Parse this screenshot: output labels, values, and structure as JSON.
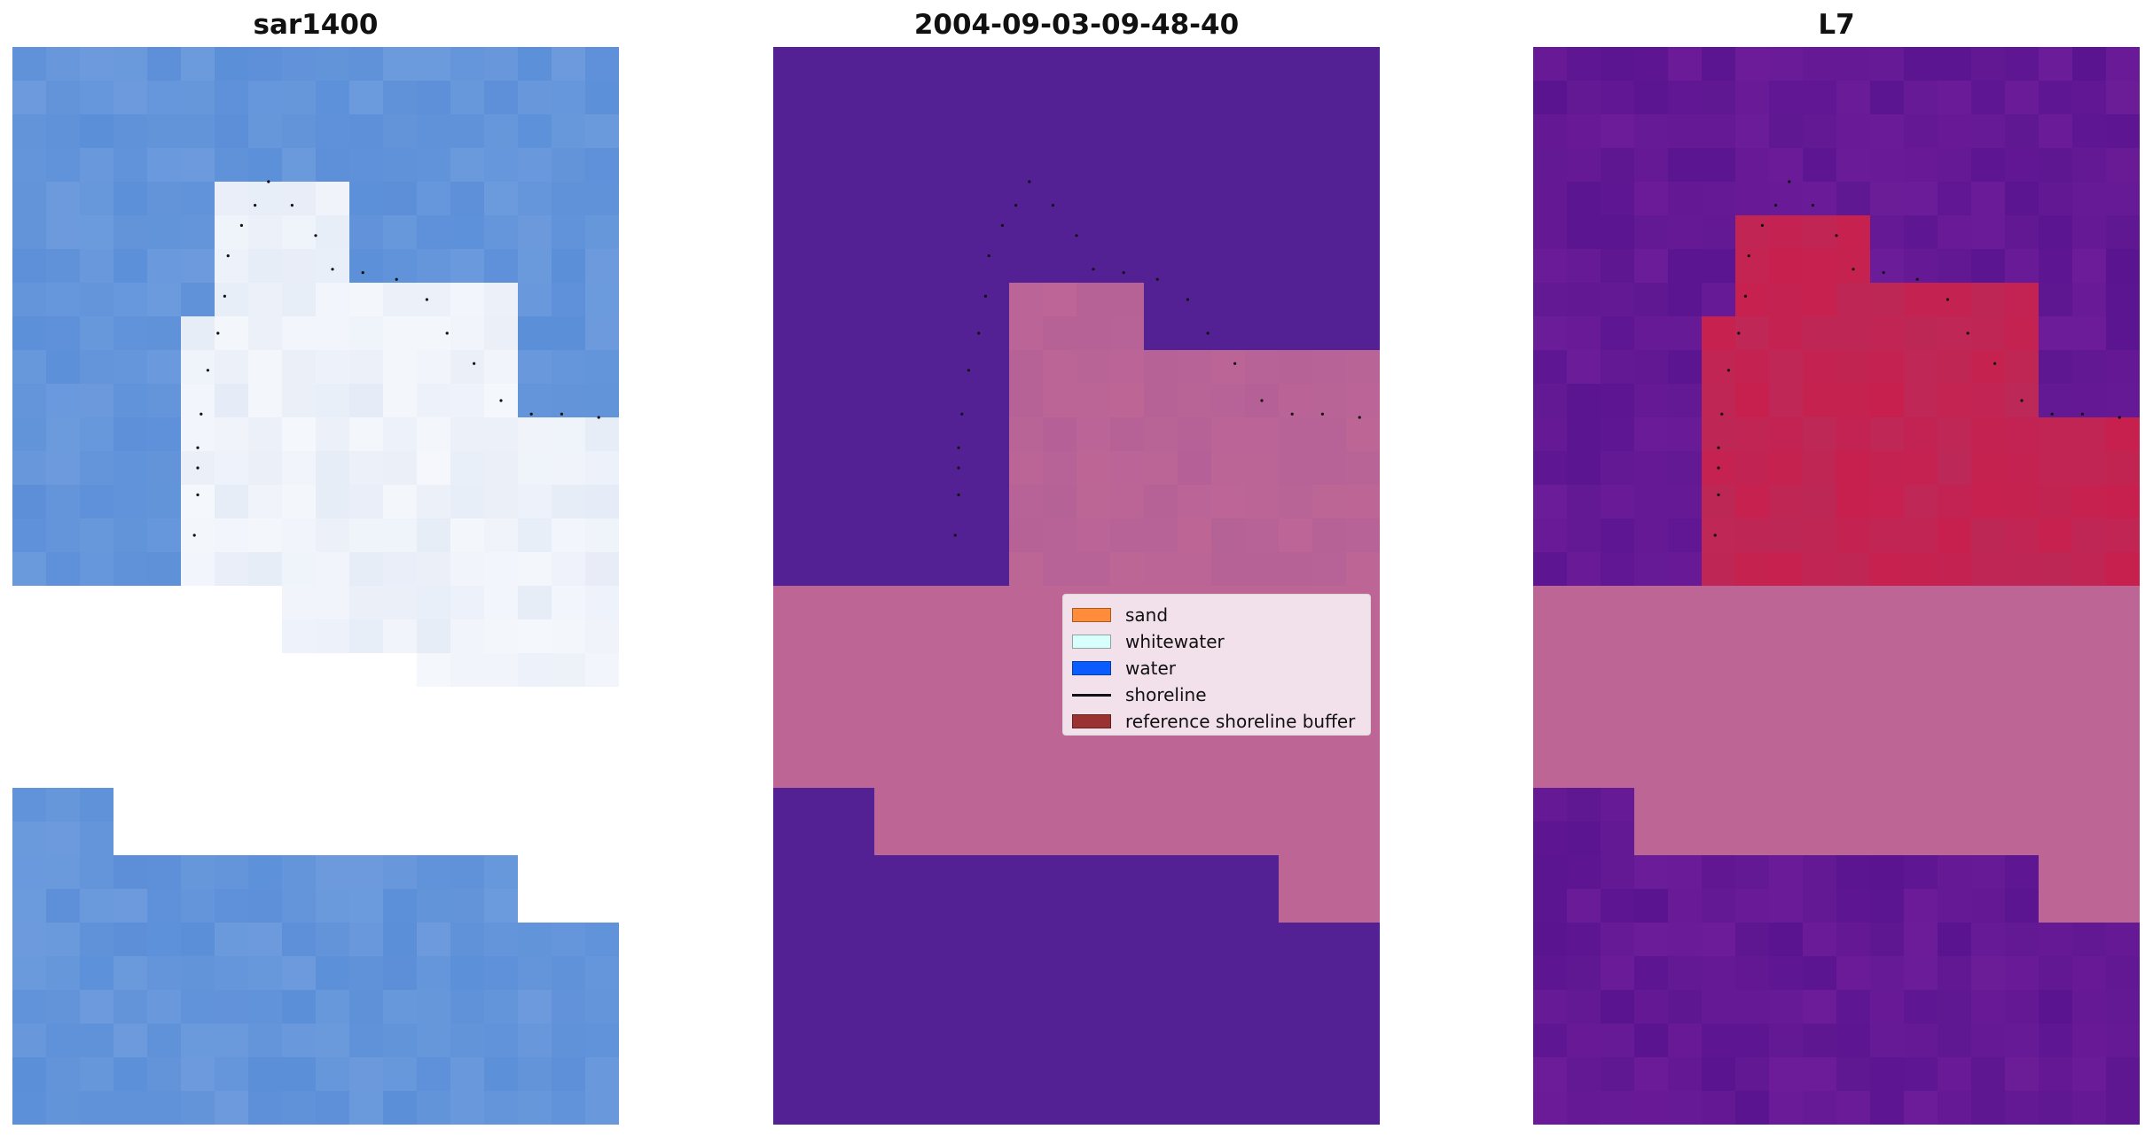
{
  "panels": [
    {
      "title": "sar1400"
    },
    {
      "title": "2004-09-03-09-48-40"
    },
    {
      "title": "L7"
    }
  ],
  "legend": [
    {
      "label": "sand",
      "color": "#ff8c3a",
      "kind": "patch"
    },
    {
      "label": "whitewater",
      "color": "#d8fffb",
      "kind": "patch"
    },
    {
      "label": "water",
      "color": "#0a5cff",
      "kind": "patch"
    },
    {
      "label": "shoreline",
      "color": "#111111",
      "kind": "line"
    },
    {
      "label": "reference shoreline buffer",
      "color": "#9a3232",
      "kind": "patch"
    }
  ],
  "colors": {
    "sar_water": "#5b8fd8",
    "sar_bright": "#e6ecf7",
    "class_background": "#542195",
    "class_overlay": "#bd6696",
    "l7_background": "#6c1c98",
    "l7_red": "#c8204e",
    "l7_buffer": "#bd6696",
    "nodata": "#ffffff",
    "shoreline": "#111111"
  }
}
